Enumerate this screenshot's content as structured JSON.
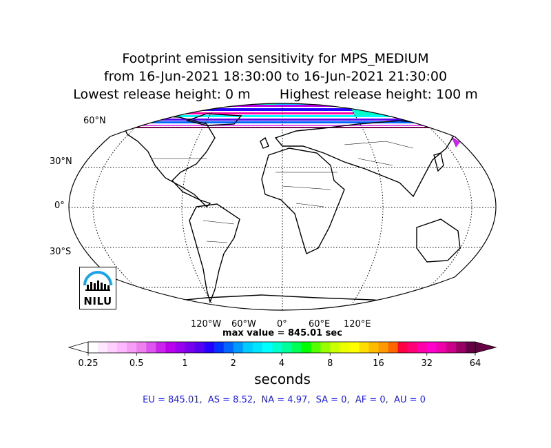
{
  "title": {
    "line1": "Footprint emission sensitivity for MPS_MEDIUM",
    "line2": "from 16-Jun-2021 18:30:00 to 16-Jun-2021 21:30:00",
    "line3": "Lowest release height: 0 m       Highest release height: 100 m"
  },
  "map": {
    "projection": "robinson",
    "lat_labels": [
      "60°N",
      "30°N",
      "0°",
      "30°S"
    ],
    "lon_labels": [
      "120°W",
      "60°W",
      "0°",
      "60°E",
      "120°E"
    ],
    "max_value_text": "max value = 845.01 sec"
  },
  "colorbar": {
    "ticks": [
      "0.25",
      "0.5",
      "1",
      "2",
      "4",
      "8",
      "16",
      "32",
      "64"
    ],
    "label": "seconds",
    "colors": [
      "#ffffff",
      "#ffe8ff",
      "#ffd0ff",
      "#ffb8ff",
      "#f79cf7",
      "#ee80ee",
      "#dd55ee",
      "#cc22ee",
      "#bb00ee",
      "#9900ee",
      "#7700ee",
      "#5500ee",
      "#2200ff",
      "#0033ff",
      "#0066ff",
      "#0099ff",
      "#00ccff",
      "#00e5ff",
      "#00ffff",
      "#00ffcc",
      "#00ff99",
      "#00ff55",
      "#00ff00",
      "#55ff00",
      "#99ff00",
      "#ccff00",
      "#eeff00",
      "#ffff00",
      "#ffdd00",
      "#ffbb00",
      "#ff9900",
      "#ff6600",
      "#ff0044",
      "#ff0077",
      "#ff00aa",
      "#ff00cc",
      "#ee00aa",
      "#cc0088",
      "#990066",
      "#660044"
    ]
  },
  "summary": "EU = 845.01,  AS = 8.52,  NA = 4.97,  SA = 0,  AF = 0,  AU = 0",
  "logo": {
    "text": "NILU"
  }
}
